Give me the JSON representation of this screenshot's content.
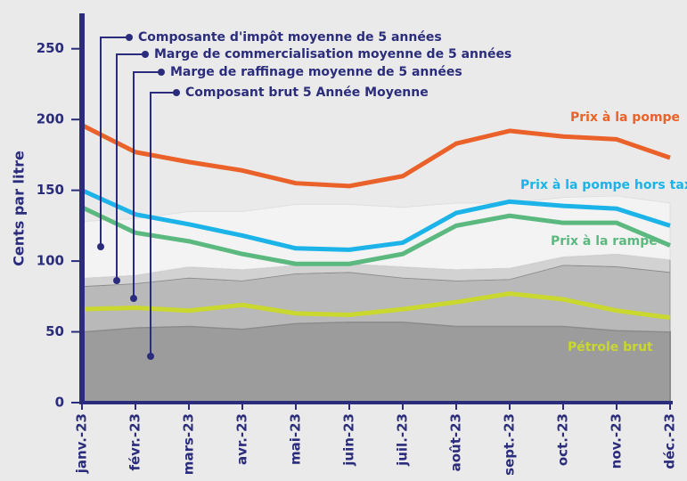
{
  "chart_data": {
    "type": "line",
    "y_label": "Cents par litre",
    "categories": [
      "janv.-23",
      "févr.-23",
      "mars-23",
      "avr.-23",
      "mai-23",
      "juin-23",
      "juil.-23",
      "août-23",
      "sept.-23",
      "oct.-23",
      "nov.-23",
      "déc.-23"
    ],
    "ylim": [
      0,
      275
    ],
    "yticks": [
      0,
      50,
      100,
      150,
      200,
      250
    ],
    "area_series": [
      {
        "name": "Composant brut 5 Année Moyenne",
        "color": "#9c9c9c",
        "values": [
          50,
          53,
          54,
          52,
          56,
          57,
          57,
          54,
          54,
          54,
          51,
          50
        ]
      },
      {
        "name": "Marge de raffinage moyenne de 5 années",
        "color": "#b9b9b9",
        "values": [
          32,
          31,
          34,
          34,
          35,
          35,
          31,
          32,
          33,
          43,
          45,
          42
        ]
      },
      {
        "name": "Marge de commercialisation moyenne de 5 années",
        "color": "#d2d2d2",
        "values": [
          6,
          6,
          8,
          8,
          6,
          6,
          8,
          8,
          8,
          6,
          9,
          9
        ]
      },
      {
        "name": "Composante d'impôt moyenne de 5 années",
        "color": "#f3f3f3",
        "values": [
          40,
          40,
          39,
          41,
          43,
          42,
          42,
          47,
          46,
          42,
          41,
          40
        ]
      }
    ],
    "series": [
      {
        "name": "Prix à la pompe",
        "color": "#ea6229",
        "values": [
          196,
          177,
          170,
          164,
          155,
          153,
          160,
          183,
          192,
          188,
          186,
          173
        ]
      },
      {
        "name": "Prix à la pompe hors taxes",
        "color": "#1cb3e8",
        "values": [
          150,
          133,
          126,
          118,
          109,
          108,
          113,
          134,
          142,
          139,
          137,
          125
        ]
      },
      {
        "name": "Prix à la rampe",
        "color": "#5bb97f",
        "values": [
          138,
          120,
          114,
          105,
          98,
          98,
          105,
          125,
          132,
          127,
          127,
          111
        ]
      },
      {
        "name": "Pétrole brut",
        "color": "#c9d72f",
        "values": [
          66,
          67,
          65,
          69,
          63,
          62,
          66,
          71,
          77,
          73,
          65,
          60
        ]
      }
    ]
  }
}
